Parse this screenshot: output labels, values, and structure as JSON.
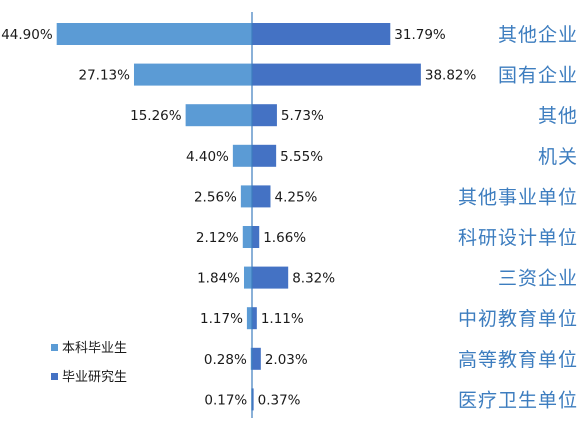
{
  "chart_data": {
    "type": "bar",
    "orientation": "horizontal-butterfly",
    "categories": [
      "其他企业",
      "国有企业",
      "其他",
      "机关",
      "其他事业单位",
      "科研设计单位",
      "三资企业",
      "中初教育单位",
      "高等教育单位",
      "医疗卫生单位"
    ],
    "series": [
      {
        "name": "本科毕业生",
        "values": [
          44.9,
          27.13,
          15.26,
          4.4,
          2.56,
          2.12,
          1.84,
          1.17,
          0.28,
          0.17
        ],
        "labels": [
          "44.90%",
          "27.13%",
          "15.26%",
          "4.40%",
          "2.56%",
          "2.12%",
          "1.84%",
          "1.17%",
          "0.28%",
          "0.17%"
        ],
        "color": "#5b9bd5",
        "side": "left"
      },
      {
        "name": "毕业研究生",
        "values": [
          31.79,
          38.82,
          5.73,
          5.55,
          4.25,
          1.66,
          8.32,
          1.11,
          2.03,
          0.37
        ],
        "labels": [
          "31.79%",
          "38.82%",
          "5.73%",
          "5.55%",
          "4.25%",
          "1.66%",
          "8.32%",
          "1.11%",
          "2.03%",
          "0.37%"
        ],
        "color": "#4472c4",
        "side": "right"
      }
    ],
    "legend": {
      "position": "bottom-left"
    },
    "category_label_color": "#3d7dbf"
  }
}
